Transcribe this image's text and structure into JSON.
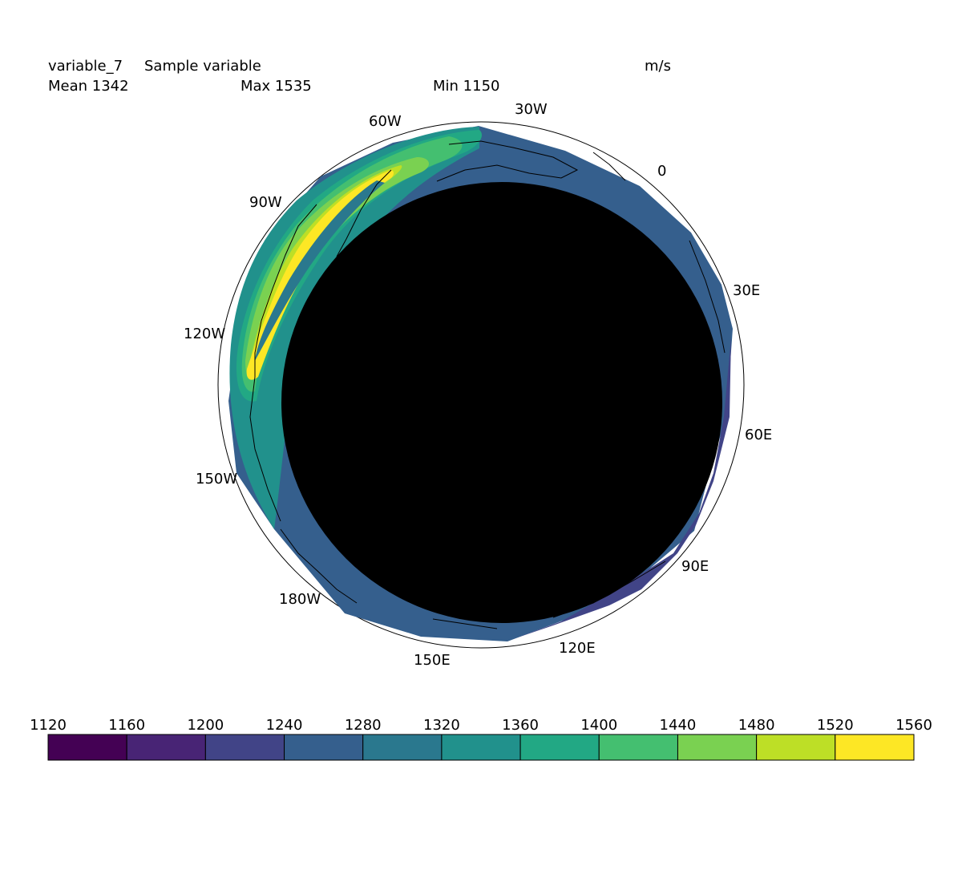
{
  "header": {
    "variable_name": "variable_7",
    "variable_long_name": "Sample variable",
    "units": "m/s",
    "mean": "Mean 1342",
    "max": "Max 1535",
    "min": "Min 1150"
  },
  "chart_data": {
    "type": "heatmap",
    "projection": "polar stereographic (filled contour)",
    "variable": "variable_7",
    "long_name": "Sample variable",
    "units": "m/s",
    "stats": {
      "mean": 1342,
      "max": 1535,
      "min": 1150
    },
    "longitude_labels": [
      "30W",
      "0",
      "30E",
      "60E",
      "90E",
      "120E",
      "150E",
      "180W",
      "150W",
      "120W",
      "90W",
      "60W"
    ],
    "colorbar": {
      "levels": [
        1120,
        1160,
        1200,
        1240,
        1280,
        1320,
        1360,
        1400,
        1440,
        1480,
        1520,
        1560
      ],
      "colors": [
        "#440154",
        "#482475",
        "#414487",
        "#355f8d",
        "#2a788e",
        "#21918c",
        "#22a884",
        "#44bf70",
        "#7ad151",
        "#bddf26",
        "#fde725"
      ]
    },
    "grid": false
  }
}
